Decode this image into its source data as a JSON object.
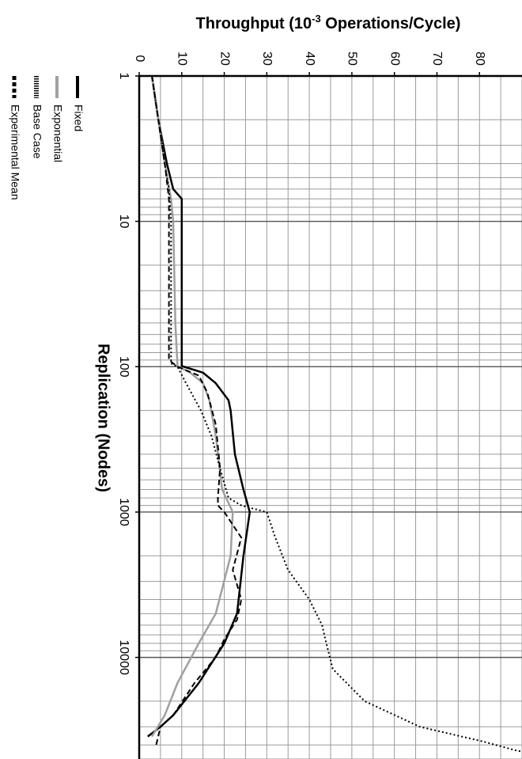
{
  "chart_data": {
    "type": "line",
    "orientation": "rotated 90 degrees clockwise (x runs top-to-bottom, y runs left-to-right)",
    "title": "Throughput (10-3 Operations/Cycle)",
    "title_parts": {
      "prefix": "Throughput (10",
      "superscript": "-3",
      "suffix": " Operations/Cycle)"
    },
    "xlabel": "Replication (Nodes)",
    "x_scale": "log",
    "xlim": [
      1,
      50000
    ],
    "x_ticks": [
      {
        "value": 1,
        "label": "1"
      },
      {
        "value": 10,
        "label": "10"
      },
      {
        "value": 100,
        "label": "100"
      },
      {
        "value": 1000,
        "label": "1000"
      },
      {
        "value": 10000,
        "label": "10000"
      }
    ],
    "ylim": [
      0,
      90
    ],
    "y_ticks": [
      {
        "value": 0,
        "label": "0"
      },
      {
        "value": 10,
        "label": "10"
      },
      {
        "value": 20,
        "label": "20"
      },
      {
        "value": 30,
        "label": "30"
      },
      {
        "value": 40,
        "label": "40"
      },
      {
        "value": 50,
        "label": "50"
      },
      {
        "value": 60,
        "label": "60"
      },
      {
        "value": 70,
        "label": "70"
      },
      {
        "value": 80,
        "label": "80"
      }
    ],
    "grid": true,
    "legend_position": "left of plot, rotated",
    "series": [
      {
        "name": "Fixed",
        "color": "#000000",
        "style": "solid",
        "points": [
          [
            1,
            3
          ],
          [
            2,
            4.5
          ],
          [
            4,
            6.5
          ],
          [
            6,
            8
          ],
          [
            7,
            10
          ],
          [
            10,
            10
          ],
          [
            30,
            10
          ],
          [
            99,
            10
          ],
          [
            110,
            15
          ],
          [
            130,
            18
          ],
          [
            170,
            21
          ],
          [
            200,
            21.5
          ],
          [
            400,
            22.5
          ],
          [
            700,
            24.5
          ],
          [
            1000,
            26
          ],
          [
            2000,
            24.5
          ],
          [
            5000,
            23
          ],
          [
            8000,
            20
          ],
          [
            15000,
            14
          ],
          [
            25000,
            8
          ],
          [
            30000,
            5
          ],
          [
            35000,
            2
          ]
        ]
      },
      {
        "name": "Exponential",
        "color": "#a0a0a0",
        "style": "solid",
        "points": [
          [
            1,
            3
          ],
          [
            2,
            4.5
          ],
          [
            4,
            6
          ],
          [
            7,
            7.5
          ],
          [
            10,
            8
          ],
          [
            50,
            8.5
          ],
          [
            99,
            9
          ],
          [
            110,
            12
          ],
          [
            130,
            15
          ],
          [
            170,
            16.5
          ],
          [
            300,
            18
          ],
          [
            700,
            19.5
          ],
          [
            1000,
            22
          ],
          [
            2000,
            21.5
          ],
          [
            5000,
            18
          ],
          [
            8000,
            14
          ],
          [
            15000,
            9
          ],
          [
            25000,
            6
          ],
          [
            35000,
            3
          ]
        ]
      },
      {
        "name": "Base Case",
        "color": "#000000",
        "style": "dotted",
        "points": [
          [
            1,
            3
          ],
          [
            2,
            4.5
          ],
          [
            4,
            6
          ],
          [
            6,
            7
          ],
          [
            10,
            7.5
          ],
          [
            30,
            7.5
          ],
          [
            95,
            7.5
          ],
          [
            100,
            9
          ],
          [
            130,
            11
          ],
          [
            200,
            14.5
          ],
          [
            300,
            17
          ],
          [
            500,
            19
          ],
          [
            800,
            21
          ],
          [
            900,
            24
          ],
          [
            950,
            27
          ],
          [
            1000,
            30
          ],
          [
            1500,
            32
          ],
          [
            2500,
            35
          ],
          [
            4000,
            40
          ],
          [
            6000,
            43
          ],
          [
            8000,
            44
          ],
          [
            12000,
            45.5
          ],
          [
            20000,
            53
          ],
          [
            30000,
            66
          ],
          [
            38000,
            81
          ],
          [
            44000,
            89
          ],
          [
            48000,
            100
          ]
        ]
      },
      {
        "name": "Experimental Mean",
        "color": "#000000",
        "style": "dashed",
        "points": [
          [
            1,
            3
          ],
          [
            2,
            4.5
          ],
          [
            4,
            6
          ],
          [
            7,
            7
          ],
          [
            10,
            7
          ],
          [
            50,
            7
          ],
          [
            90,
            7
          ],
          [
            100,
            9
          ],
          [
            115,
            14
          ],
          [
            150,
            16
          ],
          [
            250,
            18
          ],
          [
            500,
            19
          ],
          [
            800,
            18.5
          ],
          [
            900,
            18.5
          ],
          [
            1000,
            20
          ],
          [
            1500,
            24
          ],
          [
            2500,
            22
          ],
          [
            4000,
            24
          ],
          [
            5500,
            23
          ],
          [
            7500,
            20
          ],
          [
            10000,
            18
          ],
          [
            15000,
            13
          ],
          [
            25000,
            8
          ],
          [
            30000,
            5
          ],
          [
            40000,
            4
          ]
        ]
      }
    ]
  }
}
